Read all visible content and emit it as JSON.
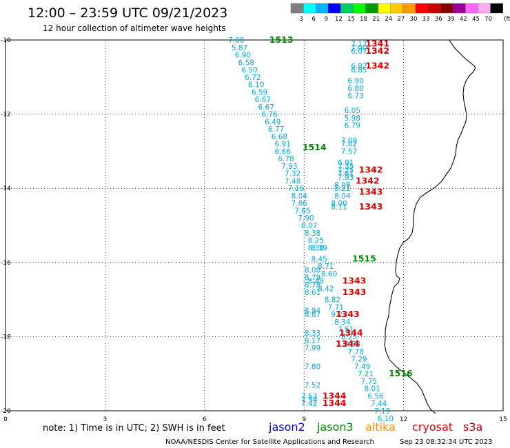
{
  "header": {
    "title": "12:00 – 23:59 UTC 09/21/2023",
    "subtitle": "12 hour collection of altimeter wave heights"
  },
  "colorbar": {
    "colors": [
      "#7f7f7f",
      "#00ffff",
      "#00b3ff",
      "#0000ff",
      "#00cc66",
      "#00ff00",
      "#009900",
      "#ffff00",
      "#ffcc00",
      "#ff9900",
      "#ff0000",
      "#cc0000",
      "#880000",
      "#990099",
      "#ff66ff",
      "#ffaaee",
      "#000000"
    ],
    "labels": [
      "3",
      "6",
      "9",
      "12",
      "15",
      "18",
      "21",
      "24",
      "27",
      "30",
      "33",
      "36",
      "39",
      "42",
      "45",
      "70"
    ],
    "unit": "(ft)"
  },
  "axes": {
    "y_ticks": [
      "-10",
      "-12",
      "-14",
      "-16",
      "-18",
      "-20"
    ],
    "x_ticks": [
      "0",
      "3",
      "6",
      "9",
      "12",
      "15"
    ]
  },
  "colors": {
    "cyan": "#00aadd",
    "green": "#008800",
    "red": "#dd0000",
    "jason2": "#0000cc",
    "jason3": "#008800",
    "altika": "#ff8800",
    "cryosat": "#dd0000",
    "s3a": "#aa0000"
  },
  "wave_values": [
    [
      "7.00",
      -10.0,
      6.9
    ],
    [
      "5.87",
      -10.2,
      7.0
    ],
    [
      "6.90",
      -10.4,
      7.1
    ],
    [
      "6.58",
      -10.6,
      7.2
    ],
    [
      "6.50",
      -10.8,
      7.3
    ],
    [
      "6.72",
      -11.0,
      7.4
    ],
    [
      "6.10",
      -11.2,
      7.5
    ],
    [
      "6.59",
      -11.4,
      7.6
    ],
    [
      "6.67",
      -11.6,
      7.7
    ],
    [
      "6.67",
      -11.8,
      7.8
    ],
    [
      "6.76",
      -12.0,
      7.9
    ],
    [
      "6.49",
      -12.2,
      8.0
    ],
    [
      "6.77",
      -12.4,
      8.1
    ],
    [
      "6.68",
      -12.6,
      8.2
    ],
    [
      "6.91",
      -12.8,
      8.3
    ],
    [
      "6.66",
      -13.0,
      8.3
    ],
    [
      "6.78",
      -13.2,
      8.4
    ],
    [
      "7.93",
      -13.4,
      8.5
    ],
    [
      "7.32",
      -13.6,
      8.6
    ],
    [
      "7.48",
      -13.8,
      8.6
    ],
    [
      "7.16",
      -14.0,
      8.7
    ],
    [
      "8.04",
      -14.2,
      8.8
    ],
    [
      "7.86",
      -14.4,
      8.8
    ],
    [
      "7.65",
      -14.6,
      8.9
    ],
    [
      "7.90",
      -14.8,
      9.0
    ],
    [
      "8.07",
      -15.0,
      9.1
    ],
    [
      "8.38",
      -15.2,
      9.2
    ],
    [
      "8.25",
      -15.4,
      9.3
    ],
    [
      "8.30",
      -15.6,
      9.3
    ],
    [
      "8.39",
      -15.6,
      9.4
    ],
    [
      "8.45",
      -15.9,
      9.4
    ],
    [
      "8.71",
      -16.1,
      9.6
    ],
    [
      "8.08",
      -16.2,
      9.2
    ],
    [
      "8.60",
      -16.3,
      9.7
    ],
    [
      "8.79",
      -16.4,
      9.2
    ],
    [
      "8.48",
      -16.5,
      9.3
    ],
    [
      "8.78",
      -16.6,
      9.2
    ],
    [
      "8.42",
      -16.7,
      9.6
    ],
    [
      "8.61",
      -16.8,
      9.2
    ],
    [
      "8.82",
      -17.0,
      9.8
    ],
    [
      "7.71",
      -17.2,
      9.9
    ],
    [
      "8.94",
      -17.3,
      9.2
    ],
    [
      "8.87",
      -17.4,
      9.2
    ],
    [
      "9.22",
      -17.4,
      10.0
    ],
    [
      "8.34",
      -17.6,
      10.1
    ],
    [
      "7.51",
      -17.8,
      10.2
    ],
    [
      "8.33",
      -17.9,
      9.2
    ],
    [
      "8.25",
      -18.0,
      10.3
    ],
    [
      "8.17",
      -18.1,
      9.2
    ],
    [
      "8.58",
      -18.2,
      10.4
    ],
    [
      "7.99",
      -18.3,
      9.2
    ],
    [
      "7.78",
      -18.4,
      10.5
    ],
    [
      "7.29",
      -18.6,
      10.6
    ],
    [
      "7.49",
      -18.8,
      10.7
    ],
    [
      "7.80",
      -18.8,
      9.2
    ],
    [
      "7.21",
      -19.0,
      10.8
    ],
    [
      "7.75",
      -19.2,
      10.9
    ],
    [
      "7.52",
      -19.3,
      9.2
    ],
    [
      "8.01",
      -19.4,
      11.0
    ],
    [
      "6.56",
      -19.6,
      11.1
    ],
    [
      "7.63",
      -19.6,
      9.1
    ],
    [
      "7.44",
      -19.8,
      11.2
    ],
    [
      "7.59",
      -19.7,
      9.1
    ],
    [
      "7.42",
      -19.8,
      9.1
    ],
    [
      "7.19",
      -20.0,
      11.3
    ],
    [
      "6.10",
      -20.2,
      11.4
    ]
  ],
  "north_track": [
    [
      "7.17",
      -10.1,
      10.6
    ],
    [
      "7.00",
      -10.2,
      10.6
    ],
    [
      "6.07",
      -10.3,
      10.6
    ],
    [
      "6.87",
      -10.7,
      10.6
    ],
    [
      "6.85",
      -10.8,
      10.6
    ],
    [
      "6.90",
      -11.1,
      10.5
    ],
    [
      "6.80",
      -11.3,
      10.5
    ],
    [
      "6.73",
      -11.5,
      10.5
    ],
    [
      "6.05",
      -11.9,
      10.4
    ],
    [
      "5.98",
      -12.1,
      10.4
    ],
    [
      "6.79",
      -12.3,
      10.4
    ],
    [
      "7.09",
      -12.7,
      10.3
    ],
    [
      "7.02",
      -12.8,
      10.3
    ],
    [
      "7.57",
      -13.0,
      10.3
    ],
    [
      "6.91",
      -13.3,
      10.2
    ],
    [
      "7.35",
      -13.4,
      10.2
    ],
    [
      "7.25",
      -13.5,
      10.2
    ],
    [
      "7.61",
      -13.6,
      10.2
    ],
    [
      "7.93",
      -13.7,
      10.2
    ],
    [
      "8.08",
      -13.9,
      10.1
    ],
    [
      "8.21",
      -14.0,
      10.1
    ],
    [
      "8.04",
      -14.2,
      10.1
    ],
    [
      "8.00",
      -14.4,
      10.0
    ],
    [
      "8.11",
      -14.5,
      10.0
    ]
  ],
  "pass_ids": [
    [
      "1513",
      -10.0,
      8.2,
      "green"
    ],
    [
      "1341",
      -10.1,
      11.1,
      "red"
    ],
    [
      "1342",
      -10.3,
      11.1,
      "red"
    ],
    [
      "1342",
      -10.7,
      11.1,
      "red"
    ],
    [
      "1514",
      -12.9,
      9.2,
      "green"
    ],
    [
      "1342",
      -13.5,
      10.9,
      "red"
    ],
    [
      "1342",
      -13.8,
      10.8,
      "red"
    ],
    [
      "1343",
      -14.1,
      10.9,
      "red"
    ],
    [
      "1343",
      -14.5,
      10.9,
      "red"
    ],
    [
      "1515",
      -15.9,
      10.7,
      "green"
    ],
    [
      "1343",
      -16.5,
      10.4,
      "red"
    ],
    [
      "1343",
      -16.8,
      10.4,
      "red"
    ],
    [
      "1343",
      -17.4,
      10.2,
      "red"
    ],
    [
      "1344",
      -17.9,
      10.3,
      "red"
    ],
    [
      "1344",
      -18.2,
      10.2,
      "red"
    ],
    [
      "1516",
      -19.0,
      11.8,
      "green"
    ],
    [
      "1344",
      -19.6,
      9.8,
      "red"
    ],
    [
      "1344",
      -19.8,
      9.8,
      "red"
    ]
  ],
  "footer": {
    "note": "note: 1) Time is in UTC; 2) SWH is in feet",
    "satellites": [
      {
        "name": "jason2",
        "color": "jason2"
      },
      {
        "name": "jason3",
        "color": "jason3"
      },
      {
        "name": "altika",
        "color": "altika"
      },
      {
        "name": "cryosat",
        "color": "cryosat"
      },
      {
        "name": "s3a",
        "color": "s3a"
      }
    ],
    "credit": "NOAA/NESDIS Center for Satellite Applications and Research",
    "timestamp": "Sep 23 08:32:34 UTC 2023"
  }
}
